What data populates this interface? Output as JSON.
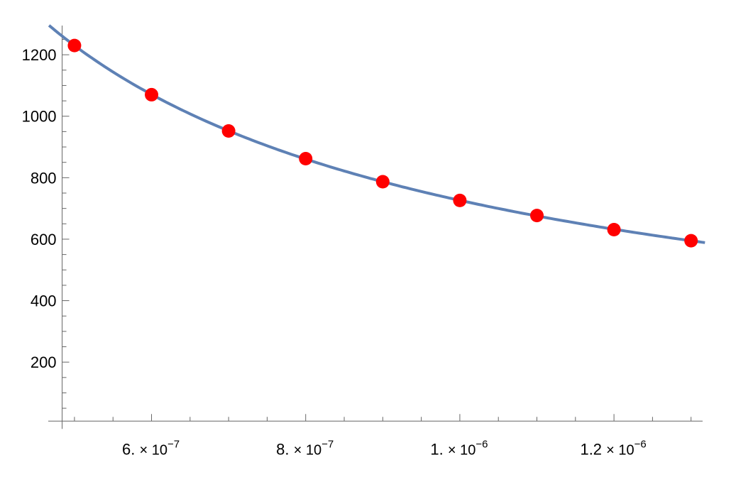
{
  "chart_data": {
    "type": "scatter",
    "title": "",
    "xlabel": "",
    "ylabel": "",
    "xlim": [
      4.66e-07,
      1.315e-06
    ],
    "ylim": [
      8,
      1295
    ],
    "grid": false,
    "x_ticks": [
      {
        "value": 6e-07,
        "mant": "6.",
        "exp": "−7"
      },
      {
        "value": 8e-07,
        "mant": "8.",
        "exp": "−7"
      },
      {
        "value": 1e-06,
        "mant": "1.",
        "exp": "−6"
      },
      {
        "value": 1.2e-06,
        "mant": "1.2",
        "exp": "−6"
      }
    ],
    "y_ticks": [
      "200",
      "400",
      "600",
      "800",
      "1000",
      "1200"
    ],
    "series": [
      {
        "type": "scatter",
        "color": "#ff0000",
        "x": [
          5e-07,
          6e-07,
          7e-07,
          8e-07,
          9e-07,
          1e-06,
          1.1e-06,
          1.2e-06,
          1.3e-06
        ],
        "y": [
          1230,
          1070,
          952,
          862,
          787,
          726,
          677,
          631,
          595
        ]
      },
      {
        "type": "line",
        "color": "#5e81b5",
        "model": "y = 1230 * (x / 5e-7)^-0.76",
        "x_range": [
          4.67e-07,
          1.318e-06
        ]
      }
    ]
  }
}
